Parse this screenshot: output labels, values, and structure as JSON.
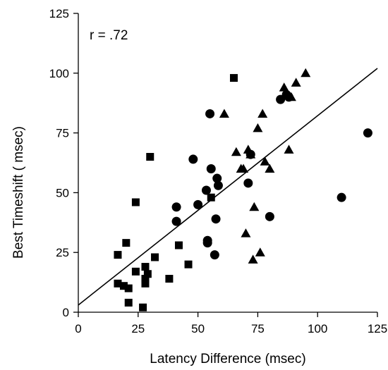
{
  "chart_data": {
    "type": "scatter",
    "title": "",
    "xlabel": "Latency Difference (msec)",
    "ylabel": "Best Timeshift ( msec)",
    "xlim": [
      0,
      125
    ],
    "ylim": [
      0,
      125
    ],
    "xticks": [
      "0",
      "25",
      "50",
      "75",
      "100",
      "125"
    ],
    "yticks": [
      "0",
      "25",
      "50",
      "75",
      "100",
      "125"
    ],
    "grid": false,
    "annotation": "r = .72",
    "colors": {
      "marker": "#000000",
      "line": "#000000",
      "axis": "#000000"
    },
    "series": [
      {
        "marker": "square",
        "points": [
          [
            16.5,
            12
          ],
          [
            19,
            11
          ],
          [
            16.5,
            24
          ],
          [
            20,
            29
          ],
          [
            21,
            10
          ],
          [
            21,
            4
          ],
          [
            24,
            46
          ],
          [
            24,
            17
          ],
          [
            27,
            2
          ],
          [
            28,
            19
          ],
          [
            28,
            14
          ],
          [
            28,
            12
          ],
          [
            29,
            16
          ],
          [
            30,
            65
          ],
          [
            32,
            23
          ],
          [
            38,
            14
          ],
          [
            42,
            28
          ],
          [
            46,
            20
          ],
          [
            55.5,
            48
          ],
          [
            65,
            98
          ]
        ]
      },
      {
        "marker": "circle",
        "points": [
          [
            41,
            44
          ],
          [
            41,
            38
          ],
          [
            48,
            64
          ],
          [
            50,
            45
          ],
          [
            53.5,
            51
          ],
          [
            54,
            30
          ],
          [
            54,
            29
          ],
          [
            55,
            83
          ],
          [
            55.5,
            60
          ],
          [
            57,
            24
          ],
          [
            57.5,
            39
          ],
          [
            58,
            56
          ],
          [
            58.5,
            53
          ],
          [
            71,
            54
          ],
          [
            72,
            66
          ],
          [
            80,
            40
          ],
          [
            84.5,
            89
          ],
          [
            87,
            91
          ],
          [
            88,
            90
          ],
          [
            110,
            48
          ],
          [
            121,
            75
          ]
        ]
      },
      {
        "marker": "triangle",
        "points": [
          [
            61,
            83
          ],
          [
            66,
            67
          ],
          [
            69,
            60
          ],
          [
            70,
            33
          ],
          [
            71,
            68
          ],
          [
            72,
            66
          ],
          [
            73,
            22
          ],
          [
            73.5,
            44
          ],
          [
            75,
            77
          ],
          [
            76,
            25
          ],
          [
            77,
            83
          ],
          [
            78,
            63
          ],
          [
            80,
            60
          ],
          [
            86,
            94
          ],
          [
            88,
            68
          ],
          [
            89,
            90
          ],
          [
            91,
            96
          ],
          [
            95,
            100
          ],
          [
            68,
            60
          ]
        ]
      }
    ],
    "regression_line": {
      "x": [
        0,
        125
      ],
      "y": [
        3,
        102
      ]
    }
  }
}
